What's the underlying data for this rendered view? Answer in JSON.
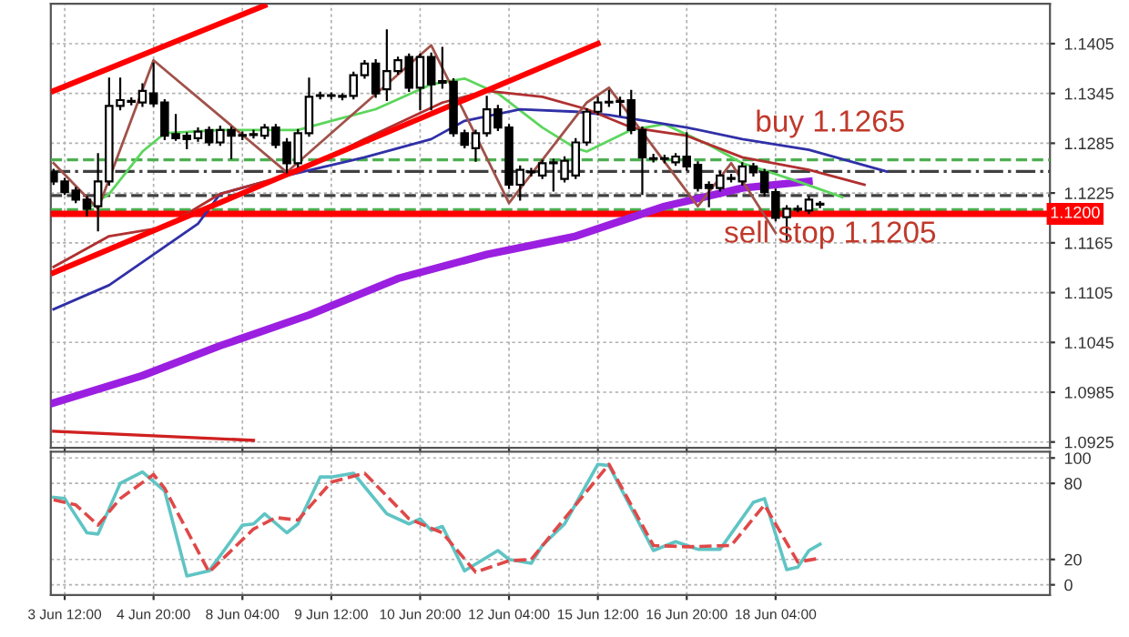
{
  "chart_data": [
    {
      "type": "candlestick",
      "tick_labels": "y",
      "grid": true,
      "legend": false,
      "categories": [
        null,
        null,
        null,
        null,
        null,
        null,
        null,
        null,
        null,
        null,
        null,
        null,
        null,
        null,
        null,
        null,
        null,
        null,
        null,
        null,
        null,
        null,
        null,
        null,
        null,
        null,
        null,
        null,
        null,
        null,
        null,
        null,
        null,
        null,
        null,
        null,
        null,
        null,
        null,
        null,
        null,
        null,
        null,
        null,
        null,
        null,
        null,
        null,
        null,
        null,
        null,
        null,
        null,
        null,
        null,
        null,
        null,
        null,
        null,
        null,
        null,
        null,
        null,
        null,
        null,
        null,
        null,
        null,
        null,
        null,
        null,
        null,
        null,
        null,
        null,
        null,
        null,
        null,
        null,
        null,
        null,
        null,
        null,
        null,
        null,
        null,
        null,
        null,
        null,
        null
      ],
      "ohlc": [
        [
          1.125,
          1.1253,
          1.1236,
          1.1239
        ],
        [
          1.1239,
          1.1242,
          1.1224,
          1.1226
        ],
        [
          1.1228,
          1.1231,
          1.1214,
          1.1217
        ],
        [
          1.1217,
          1.122,
          1.1198,
          1.1206
        ],
        [
          1.1209,
          1.1272,
          1.118,
          1.1239
        ],
        [
          1.1239,
          1.1363,
          1.1235,
          1.133
        ],
        [
          1.133,
          1.1363,
          1.1326,
          1.1337
        ],
        [
          1.1335,
          1.1339,
          1.1332,
          1.1336
        ],
        [
          1.1334,
          1.1356,
          1.133,
          1.1348
        ],
        [
          1.1345,
          1.1381,
          1.133,
          1.1333
        ],
        [
          1.1334,
          1.1337,
          1.129,
          1.1294
        ],
        [
          1.1296,
          1.1319,
          1.1289,
          1.1291
        ],
        [
          1.1294,
          1.1297,
          1.1279,
          1.129
        ],
        [
          1.1291,
          1.1303,
          1.1288,
          1.1299
        ],
        [
          1.1301,
          1.1304,
          1.1283,
          1.1286
        ],
        [
          1.1286,
          1.1305,
          1.1283,
          1.1301
        ],
        [
          1.1301,
          1.1304,
          1.1267,
          1.1294
        ],
        [
          1.1294,
          1.1298,
          1.129,
          1.1295
        ],
        [
          1.1296,
          1.13,
          1.1292,
          1.1295
        ],
        [
          1.1294,
          1.1307,
          1.1291,
          1.1304
        ],
        [
          1.1304,
          1.1307,
          1.128,
          1.1283
        ],
        [
          1.1286,
          1.129,
          1.125,
          1.1261
        ],
        [
          1.1261,
          1.1301,
          1.1257,
          1.1297
        ],
        [
          1.1297,
          1.1363,
          1.1294,
          1.1341
        ],
        [
          1.1343,
          1.1346,
          1.1339,
          1.1342
        ],
        [
          1.1342,
          1.1345,
          1.1339,
          1.1343
        ],
        [
          1.1341,
          1.1344,
          1.1338,
          1.1342
        ],
        [
          1.1342,
          1.137,
          1.1339,
          1.1367
        ],
        [
          1.1367,
          1.1384,
          1.1364,
          1.1381
        ],
        [
          1.1381,
          1.1385,
          1.1341,
          1.1345
        ],
        [
          1.135,
          1.1421,
          1.1337,
          1.1372
        ],
        [
          1.1372,
          1.1388,
          1.1369,
          1.1385
        ],
        [
          1.1389,
          1.1392,
          1.1348,
          1.1352
        ],
        [
          1.1352,
          1.1392,
          1.1326,
          1.1389
        ],
        [
          1.1389,
          1.1393,
          1.1326,
          1.1356
        ],
        [
          1.1358,
          1.14,
          1.1352,
          1.136
        ],
        [
          1.1359,
          1.1362,
          1.1294,
          1.1297
        ],
        [
          1.1297,
          1.13,
          1.128,
          1.1283
        ],
        [
          1.1279,
          1.13,
          1.1264,
          1.1297
        ],
        [
          1.1297,
          1.1341,
          1.1294,
          1.1326
        ],
        [
          1.1326,
          1.133,
          1.1301,
          1.1304
        ],
        [
          1.1304,
          1.1307,
          1.1231,
          1.1235
        ],
        [
          1.1235,
          1.1257,
          1.1217,
          1.1253
        ],
        [
          1.1251,
          1.1254,
          1.1246,
          1.125
        ],
        [
          1.1246,
          1.1264,
          1.1243,
          1.1261
        ],
        [
          1.1262,
          1.1265,
          1.1228,
          1.1261
        ],
        [
          1.1242,
          1.1268,
          1.1239,
          1.1264
        ],
        [
          1.1246,
          1.129,
          1.1243,
          1.1286
        ],
        [
          1.1286,
          1.1326,
          1.1283,
          1.1323
        ],
        [
          1.1323,
          1.134,
          1.132,
          1.1334
        ],
        [
          1.1334,
          1.1348,
          1.133,
          1.1335
        ],
        [
          1.1336,
          1.134,
          1.1319,
          1.1335
        ],
        [
          1.1337,
          1.1348,
          1.1297,
          1.1301
        ],
        [
          1.1301,
          1.1304,
          1.1224,
          1.1268
        ],
        [
          1.1267,
          1.1271,
          1.1263,
          1.1266
        ],
        [
          1.1266,
          1.127,
          1.1262,
          1.1267
        ],
        [
          1.1262,
          1.1272,
          1.1259,
          1.1269
        ],
        [
          1.1269,
          1.1297,
          1.1253,
          1.1257
        ],
        [
          1.1259,
          1.1262,
          1.1228,
          1.1231
        ],
        [
          1.1235,
          1.1238,
          1.1209,
          1.1231
        ],
        [
          1.1231,
          1.125,
          1.1228,
          1.1246
        ],
        [
          1.1243,
          1.1247,
          1.1239,
          1.1242
        ],
        [
          1.1239,
          1.1261,
          1.1235,
          1.1257
        ],
        [
          1.1257,
          1.126,
          1.1246,
          1.125
        ],
        [
          1.125,
          1.1253,
          1.1222,
          1.1226
        ],
        [
          1.1226,
          1.1229,
          1.1192,
          1.1195
        ],
        [
          1.1196,
          1.1209,
          1.1169,
          1.1206
        ],
        [
          1.1206,
          1.1209,
          1.1203,
          1.1205
        ],
        [
          1.1204,
          1.122,
          1.1201,
          1.1217
        ],
        [
          1.1211,
          1.1214,
          1.1208,
          1.1212
        ],
        null,
        null,
        null,
        null,
        null,
        null,
        null,
        null,
        null,
        null,
        null,
        null,
        null,
        null,
        null,
        null,
        null,
        null,
        null,
        null
      ],
      "series": [
        {
          "type": "line",
          "color": "#9b1fe0",
          "values": [
            1.0972,
            null,
            null,
            null,
            null,
            null,
            null,
            null,
            1.1005,
            null,
            null,
            null,
            null,
            null,
            null,
            1.1041,
            null,
            null,
            null,
            null,
            null,
            null,
            null,
            1.1078,
            null,
            null,
            null,
            null,
            null,
            null,
            null,
            1.1122,
            null,
            null,
            null,
            null,
            null,
            null,
            null,
            1.1151,
            null,
            null,
            null,
            null,
            null,
            null,
            null,
            1.1173,
            null,
            null,
            null,
            null,
            null,
            null,
            null,
            1.1209,
            null,
            null,
            null,
            null,
            null,
            null,
            1.1231,
            null,
            null,
            null,
            null,
            null,
            1.1239,
            null,
            null,
            null,
            null,
            null,
            null,
            null,
            null,
            null,
            null,
            null,
            null,
            null,
            null,
            null,
            null,
            null,
            null,
            null,
            null,
            null
          ]
        },
        {
          "type": "line",
          "color": "#5cd65c",
          "values": [
            null,
            null,
            null,
            1.1206,
            null,
            1.1224,
            null,
            null,
            1.1275,
            null,
            1.1297,
            null,
            null,
            null,
            null,
            1.1301,
            null,
            null,
            null,
            null,
            null,
            null,
            1.1301,
            null,
            null,
            1.1312,
            null,
            null,
            null,
            1.1326,
            null,
            null,
            null,
            null,
            1.1356,
            null,
            null,
            1.1363,
            null,
            null,
            1.1345,
            null,
            null,
            null,
            1.1304,
            null,
            null,
            1.1279,
            1.1275,
            null,
            null,
            null,
            1.1301,
            null,
            null,
            1.1308,
            null,
            null,
            null,
            1.1283,
            null,
            null,
            1.1261,
            null,
            null,
            null,
            null,
            1.1239,
            null,
            null,
            null,
            1.122,
            null,
            null,
            null,
            null,
            null,
            null,
            null,
            null,
            null,
            null,
            null,
            null,
            null,
            null,
            null,
            null,
            null,
            null
          ]
        },
        {
          "type": "line",
          "color": "#3030a8",
          "values": [
            1.1085,
            null,
            null,
            null,
            null,
            1.1114,
            null,
            null,
            null,
            null,
            null,
            null,
            null,
            1.1188,
            null,
            1.1224,
            null,
            null,
            null,
            null,
            null,
            1.1246,
            null,
            null,
            null,
            null,
            null,
            null,
            1.1268,
            null,
            null,
            null,
            null,
            null,
            1.129,
            null,
            null,
            1.1312,
            null,
            null,
            null,
            null,
            1.1326,
            null,
            null,
            null,
            null,
            1.1323,
            null,
            null,
            1.1319,
            null,
            null,
            null,
            null,
            null,
            null,
            1.1304,
            null,
            null,
            null,
            null,
            1.129,
            null,
            null,
            null,
            null,
            null,
            1.1277,
            null,
            null,
            null,
            null,
            null,
            null,
            1.1251,
            null,
            null,
            null,
            null,
            null,
            null,
            null,
            null,
            null,
            null,
            null,
            null,
            null,
            null
          ]
        },
        {
          "type": "line",
          "color": "#b03030",
          "values": [
            1.1136,
            null,
            null,
            null,
            null,
            1.1173,
            null,
            null,
            null,
            null,
            1.1184,
            null,
            null,
            null,
            null,
            1.1224,
            null,
            null,
            null,
            null,
            null,
            null,
            1.125,
            null,
            null,
            null,
            null,
            null,
            1.129,
            null,
            null,
            null,
            null,
            null,
            null,
            1.1334,
            null,
            null,
            null,
            1.1348,
            null,
            null,
            null,
            null,
            1.1341,
            null,
            null,
            null,
            1.1326,
            null,
            null,
            null,
            1.1304,
            null,
            null,
            null,
            null,
            1.1294,
            null,
            null,
            null,
            null,
            1.1268,
            null,
            null,
            null,
            null,
            null,
            1.1253,
            null,
            null,
            null,
            null,
            1.1235,
            null,
            null,
            null,
            null,
            null,
            null,
            null,
            null,
            null,
            null,
            null,
            null,
            null,
            null,
            null,
            null
          ]
        },
        {
          "type": "line",
          "color": "#a0524a",
          "values": [
            1.1261,
            null,
            null,
            null,
            1.1206,
            null,
            null,
            null,
            null,
            1.1385,
            null,
            null,
            null,
            null,
            null,
            null,
            null,
            null,
            null,
            null,
            null,
            1.125,
            null,
            null,
            null,
            null,
            null,
            null,
            null,
            null,
            null,
            null,
            null,
            null,
            1.1403,
            null,
            null,
            null,
            null,
            null,
            null,
            1.1213,
            null,
            null,
            null,
            null,
            null,
            null,
            1.1334,
            null,
            1.1352,
            null,
            null,
            null,
            null,
            null,
            null,
            null,
            1.1209,
            null,
            null,
            1.1261,
            null,
            null,
            null,
            1.1177,
            null,
            null,
            null,
            null,
            null,
            null,
            null,
            null,
            null,
            null,
            null,
            null,
            null,
            null,
            null,
            null,
            null,
            null,
            null,
            null,
            null,
            null,
            null,
            null
          ]
        },
        {
          "type": "line",
          "color": "#ff0000",
          "values": [
            1.1348,
            null,
            null,
            null,
            null,
            null,
            null,
            null,
            null,
            null,
            null,
            null,
            null,
            null,
            null,
            null,
            null,
            null,
            null,
            1.1451,
            null,
            null,
            null,
            null,
            null,
            null,
            null,
            null,
            null,
            null,
            null,
            null,
            null,
            null,
            null,
            null,
            null,
            null,
            null,
            null,
            null,
            null,
            null,
            null,
            null,
            null,
            null,
            null,
            null,
            null,
            null,
            null,
            null,
            null,
            null,
            null,
            null,
            null,
            null,
            null,
            null,
            null,
            null,
            null,
            null,
            null,
            null,
            null,
            null,
            null,
            null,
            null,
            null,
            null,
            null,
            null,
            null,
            null,
            null,
            null,
            null,
            null,
            null,
            null,
            null,
            null,
            null,
            null,
            null,
            null
          ]
        },
        {
          "type": "line",
          "color": "#ff0000",
          "values": [
            1.1129,
            null,
            null,
            null,
            null,
            null,
            null,
            null,
            null,
            null,
            null,
            null,
            null,
            null,
            null,
            null,
            null,
            null,
            null,
            null,
            null,
            null,
            null,
            null,
            null,
            null,
            null,
            null,
            null,
            null,
            null,
            null,
            null,
            null,
            null,
            null,
            null,
            null,
            null,
            null,
            null,
            null,
            null,
            null,
            null,
            null,
            null,
            null,
            null,
            1.1405,
            null,
            null,
            null,
            null,
            null,
            null,
            null,
            null,
            null,
            null,
            null,
            null,
            null,
            null,
            null,
            null,
            null,
            null,
            null,
            null,
            null,
            null,
            null,
            null,
            null,
            null,
            null,
            null,
            null,
            null,
            null,
            null,
            null,
            null,
            null,
            null,
            null,
            null,
            null,
            null
          ]
        },
        {
          "type": "line",
          "color": "#d02020",
          "values": [
            1.0938,
            null,
            null,
            null,
            null,
            null,
            null,
            null,
            null,
            null,
            null,
            null,
            null,
            null,
            null,
            null,
            null,
            null,
            1.0927,
            null,
            null,
            null,
            null,
            null,
            null,
            null,
            null,
            null,
            null,
            null,
            null,
            null,
            null,
            null,
            null,
            null,
            null,
            null,
            null,
            null,
            null,
            null,
            null,
            null,
            null,
            null,
            null,
            null,
            null,
            null,
            null,
            null,
            null,
            null,
            null,
            null,
            null,
            null,
            null,
            null,
            null,
            null,
            null,
            null,
            null,
            null,
            null,
            null,
            null,
            null,
            null,
            null,
            null,
            null,
            null,
            null,
            null,
            null,
            null,
            null,
            null,
            null,
            null,
            null,
            null,
            null,
            null,
            null,
            null,
            null
          ]
        }
      ],
      "ref_lines": [
        {
          "axis": "y",
          "value": 1.1265,
          "label": null,
          "color": "#4caf50",
          "line_style": "dashed"
        },
        {
          "axis": "y",
          "value": 1.1251,
          "label": null,
          "color": "#404040",
          "line_style": "dashdot"
        },
        {
          "axis": "y",
          "value": 1.1222,
          "label": null,
          "color": "#404040",
          "line_style": "dashed"
        },
        {
          "axis": "y",
          "value": 1.1205,
          "label": null,
          "color": "#4caf50",
          "line_style": "dashed"
        },
        {
          "axis": "y",
          "value": 1.12,
          "label": "1.1200",
          "color": "#ff0000",
          "line_style": "solid"
        }
      ],
      "annotations": [
        "buy 1.1265",
        "sell stop 1.1205"
      ],
      "ylim": [
        1.0918,
        1.1453
      ],
      "yticks": [
        1.0925,
        1.0985,
        1.1045,
        1.1105,
        1.1165,
        1.1225,
        1.1285,
        1.1345,
        1.1405
      ]
    },
    {
      "type": "line",
      "grid": true,
      "legend": false,
      "categories": [
        null,
        "3 Jun 12:00",
        null,
        null,
        null,
        null,
        null,
        null,
        null,
        "4 Jun 20:00",
        null,
        null,
        null,
        null,
        null,
        null,
        null,
        "8 Jun 04:00",
        null,
        null,
        null,
        null,
        null,
        null,
        null,
        "9 Jun 12:00",
        null,
        null,
        null,
        null,
        null,
        null,
        null,
        "10 Jun 20:00",
        null,
        null,
        null,
        null,
        null,
        null,
        null,
        "12 Jun 04:00",
        null,
        null,
        null,
        null,
        null,
        null,
        null,
        "15 Jun 12:00",
        null,
        null,
        null,
        null,
        null,
        null,
        null,
        "16 Jun 20:00",
        null,
        null,
        null,
        null,
        null,
        null,
        null,
        "18 Jun 04:00",
        null,
        null,
        null,
        null,
        null,
        null,
        null,
        null,
        null,
        null,
        null,
        null,
        null,
        null,
        null,
        null,
        null,
        null,
        null,
        null,
        null,
        null,
        null,
        null
      ],
      "series": [
        {
          "color": "#5fc4c4",
          "line_style": "solid",
          "values": [
            69,
            68,
            null,
            41,
            40,
            null,
            80,
            null,
            89,
            null,
            74,
            null,
            7,
            null,
            11,
            null,
            null,
            47,
            48,
            56,
            null,
            41,
            48,
            null,
            85,
            85,
            null,
            88,
            null,
            null,
            56,
            null,
            48,
            52,
            43,
            46,
            null,
            11,
            null,
            null,
            27,
            20,
            null,
            17,
            31,
            null,
            48,
            null,
            null,
            95,
            94,
            null,
            null,
            null,
            27,
            null,
            34,
            null,
            28,
            null,
            28,
            null,
            null,
            65,
            68,
            null,
            12,
            14,
            27,
            32,
            null,
            null,
            null,
            null,
            null,
            null,
            null,
            null,
            null,
            null,
            null,
            null,
            null,
            null,
            null,
            null,
            null,
            null,
            null,
            null
          ]
        },
        {
          "color": "#e04848",
          "line_style": "dashed",
          "values": [
            67,
            null,
            63,
            null,
            47,
            null,
            68,
            null,
            null,
            87,
            76,
            null,
            null,
            null,
            10,
            null,
            null,
            null,
            44,
            null,
            53,
            null,
            51,
            null,
            null,
            81,
            null,
            null,
            88,
            null,
            null,
            null,
            52,
            null,
            null,
            41,
            null,
            null,
            10,
            null,
            null,
            19,
            null,
            20,
            null,
            null,
            null,
            63,
            null,
            null,
            95,
            null,
            null,
            null,
            31,
            null,
            null,
            30,
            null,
            null,
            null,
            31,
            null,
            null,
            63,
            null,
            null,
            18,
            null,
            21,
            null,
            null,
            null,
            null,
            null,
            null,
            null,
            null,
            null,
            null,
            null,
            null,
            null,
            null,
            null,
            null,
            null,
            null,
            null,
            null
          ]
        }
      ],
      "ylim": [
        -8,
        105
      ],
      "yticks": [
        0,
        20,
        80,
        100
      ]
    }
  ]
}
